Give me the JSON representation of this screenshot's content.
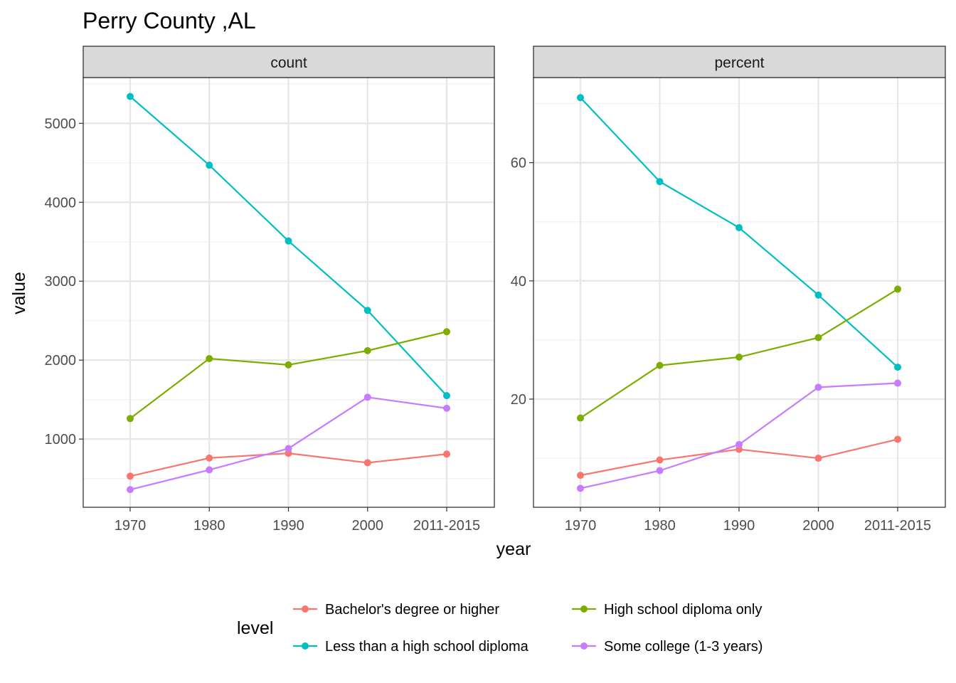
{
  "chart_data": {
    "type": "line",
    "title": "Perry County ,AL",
    "xlabel": "year",
    "ylabel": "value",
    "categories": [
      "1970",
      "1980",
      "1990",
      "2000",
      "2011-2015"
    ],
    "grid": true,
    "legend": {
      "title": "level",
      "position": "bottom"
    },
    "panels": [
      {
        "name": "count",
        "ylim": [
          136,
          5580
        ],
        "yticks": [
          1000,
          2000,
          3000,
          4000,
          5000
        ],
        "series": [
          {
            "name": "Bachelor's degree or higher",
            "color": "#F8766D",
            "values": [
              530,
              760,
              820,
              700,
              810
            ]
          },
          {
            "name": "Less than a high school diploma",
            "color": "#00BFC4",
            "values": [
              5340,
              4470,
              3510,
              2630,
              1550
            ]
          },
          {
            "name": "High school diploma only",
            "color": "#7CAE00",
            "values": [
              1260,
              2020,
              1940,
              2120,
              2360
            ]
          },
          {
            "name": "Some college (1-3 years)",
            "color": "#C77CFF",
            "values": [
              360,
              610,
              880,
              1530,
              1390
            ]
          }
        ]
      },
      {
        "name": "percent",
        "ylim": [
          1.7,
          74.4
        ],
        "yticks": [
          20,
          40,
          60
        ],
        "series": [
          {
            "name": "Bachelor's degree or higher",
            "color": "#F8766D",
            "values": [
              7.1,
              9.7,
              11.5,
              10.0,
              13.2
            ]
          },
          {
            "name": "Less than a high school diploma",
            "color": "#00BFC4",
            "values": [
              71.0,
              56.8,
              49.0,
              37.6,
              25.4
            ]
          },
          {
            "name": "High school diploma only",
            "color": "#7CAE00",
            "values": [
              16.8,
              25.7,
              27.1,
              30.4,
              38.6
            ]
          },
          {
            "name": "Some college (1-3 years)",
            "color": "#C77CFF",
            "values": [
              4.9,
              7.9,
              12.3,
              22.0,
              22.7
            ]
          }
        ]
      }
    ]
  },
  "legend": {
    "title": "level",
    "items": [
      {
        "label": "Bachelor's degree or higher",
        "color": "#F8766D"
      },
      {
        "label": "High school diploma only",
        "color": "#7CAE00"
      },
      {
        "label": "Less than a high school diploma",
        "color": "#00BFC4"
      },
      {
        "label": "Some college (1-3 years)",
        "color": "#C77CFF"
      }
    ]
  }
}
